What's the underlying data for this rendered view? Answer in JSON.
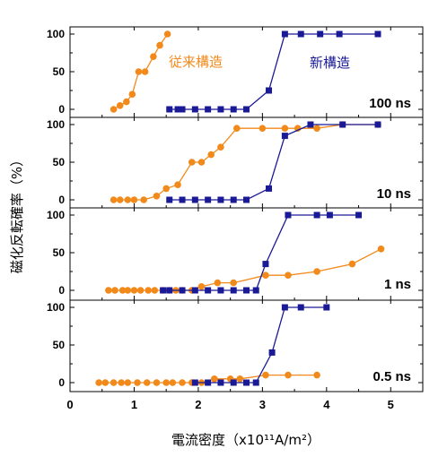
{
  "chart_data": {
    "type": "line",
    "xlabel": "電流密度（x10¹¹A/m²）",
    "ylabel": "磁化反転確率（%）",
    "xlim": [
      0,
      5.5
    ],
    "xticks": [
      "0",
      "1",
      "2",
      "3",
      "4",
      "5"
    ],
    "ylim": [
      -8,
      110
    ],
    "yticks": [
      "0",
      "50",
      "100"
    ],
    "colors": {
      "conventional": "#f28a1b",
      "new": "#1a1a96"
    },
    "legend": {
      "conventional": "従来構造",
      "new": "新構造"
    },
    "panels": [
      {
        "label": "100 ns",
        "series": [
          {
            "name": "従来構造",
            "marker": "circle",
            "x": [
              0.68,
              0.78,
              0.88,
              0.97,
              1.07,
              1.17,
              1.3,
              1.4,
              1.52
            ],
            "y": [
              0,
              5,
              10,
              20,
              50,
              50,
              70,
              85,
              100
            ]
          },
          {
            "name": "新構造",
            "marker": "square",
            "x": [
              1.55,
              1.68,
              1.75,
              1.95,
              2.15,
              2.35,
              2.55,
              2.75,
              3.1,
              3.35,
              3.6,
              3.9,
              4.2,
              4.8
            ],
            "y": [
              0,
              0,
              0,
              0,
              0,
              0,
              0,
              0,
              25,
              100,
              100,
              100,
              100,
              100
            ]
          }
        ]
      },
      {
        "label": "10 ns",
        "series": [
          {
            "name": "従来構造",
            "marker": "circle",
            "x": [
              0.68,
              0.78,
              0.9,
              1.0,
              1.15,
              1.35,
              1.5,
              1.68,
              1.9,
              2.05,
              2.2,
              2.35,
              2.6,
              3.0,
              3.35,
              3.55,
              3.85,
              4.25,
              4.8
            ],
            "y": [
              0,
              0,
              0,
              0,
              0,
              5,
              15,
              20,
              50,
              50,
              60,
              70,
              95,
              95,
              95,
              95,
              95,
              100,
              100
            ]
          },
          {
            "name": "新構造",
            "marker": "square",
            "x": [
              1.55,
              1.75,
              1.95,
              2.15,
              2.35,
              2.55,
              2.75,
              3.1,
              3.35,
              3.75,
              4.25,
              4.8
            ],
            "y": [
              0,
              0,
              0,
              0,
              0,
              0,
              0,
              15,
              85,
              100,
              100,
              100
            ]
          }
        ]
      },
      {
        "label": "1 ns",
        "series": [
          {
            "name": "従来構造",
            "marker": "circle",
            "x": [
              0.6,
              0.7,
              0.82,
              0.9,
              1.0,
              1.1,
              1.22,
              1.32,
              1.45,
              1.55,
              1.65,
              1.75,
              1.9,
              2.05,
              2.3,
              2.55,
              3.05,
              3.4,
              3.85,
              4.4,
              4.85
            ],
            "y": [
              0,
              0,
              0,
              0,
              0,
              0,
              0,
              0,
              0,
              0,
              0,
              0,
              0,
              5,
              10,
              10,
              20,
              20,
              25,
              35,
              55
            ]
          },
          {
            "name": "新構造",
            "marker": "square",
            "x": [
              1.45,
              1.55,
              1.75,
              1.95,
              2.15,
              2.35,
              2.55,
              2.75,
              2.9,
              3.05,
              3.4,
              3.85,
              4.05,
              4.5
            ],
            "y": [
              0,
              0,
              0,
              0,
              0,
              0,
              0,
              0,
              0,
              35,
              100,
              100,
              100,
              100
            ]
          }
        ]
      },
      {
        "label": "0.5 ns",
        "series": [
          {
            "name": "従来構造",
            "marker": "circle",
            "x": [
              0.45,
              0.55,
              0.68,
              0.8,
              0.9,
              1.05,
              1.2,
              1.35,
              1.5,
              1.6,
              1.75,
              1.9,
              2.05,
              2.25,
              2.5,
              2.65,
              3.05,
              3.4,
              3.85
            ],
            "y": [
              0,
              0,
              0,
              0,
              0,
              0,
              0,
              0,
              0,
              0,
              0,
              0,
              0,
              5,
              5,
              5,
              10,
              10,
              10
            ]
          },
          {
            "name": "新構造",
            "marker": "square",
            "x": [
              1.95,
              2.15,
              2.35,
              2.55,
              2.75,
              2.9,
              3.15,
              3.35,
              3.6,
              4.0
            ],
            "y": [
              0,
              0,
              0,
              0,
              0,
              0,
              40,
              100,
              100,
              100
            ]
          }
        ]
      }
    ]
  }
}
